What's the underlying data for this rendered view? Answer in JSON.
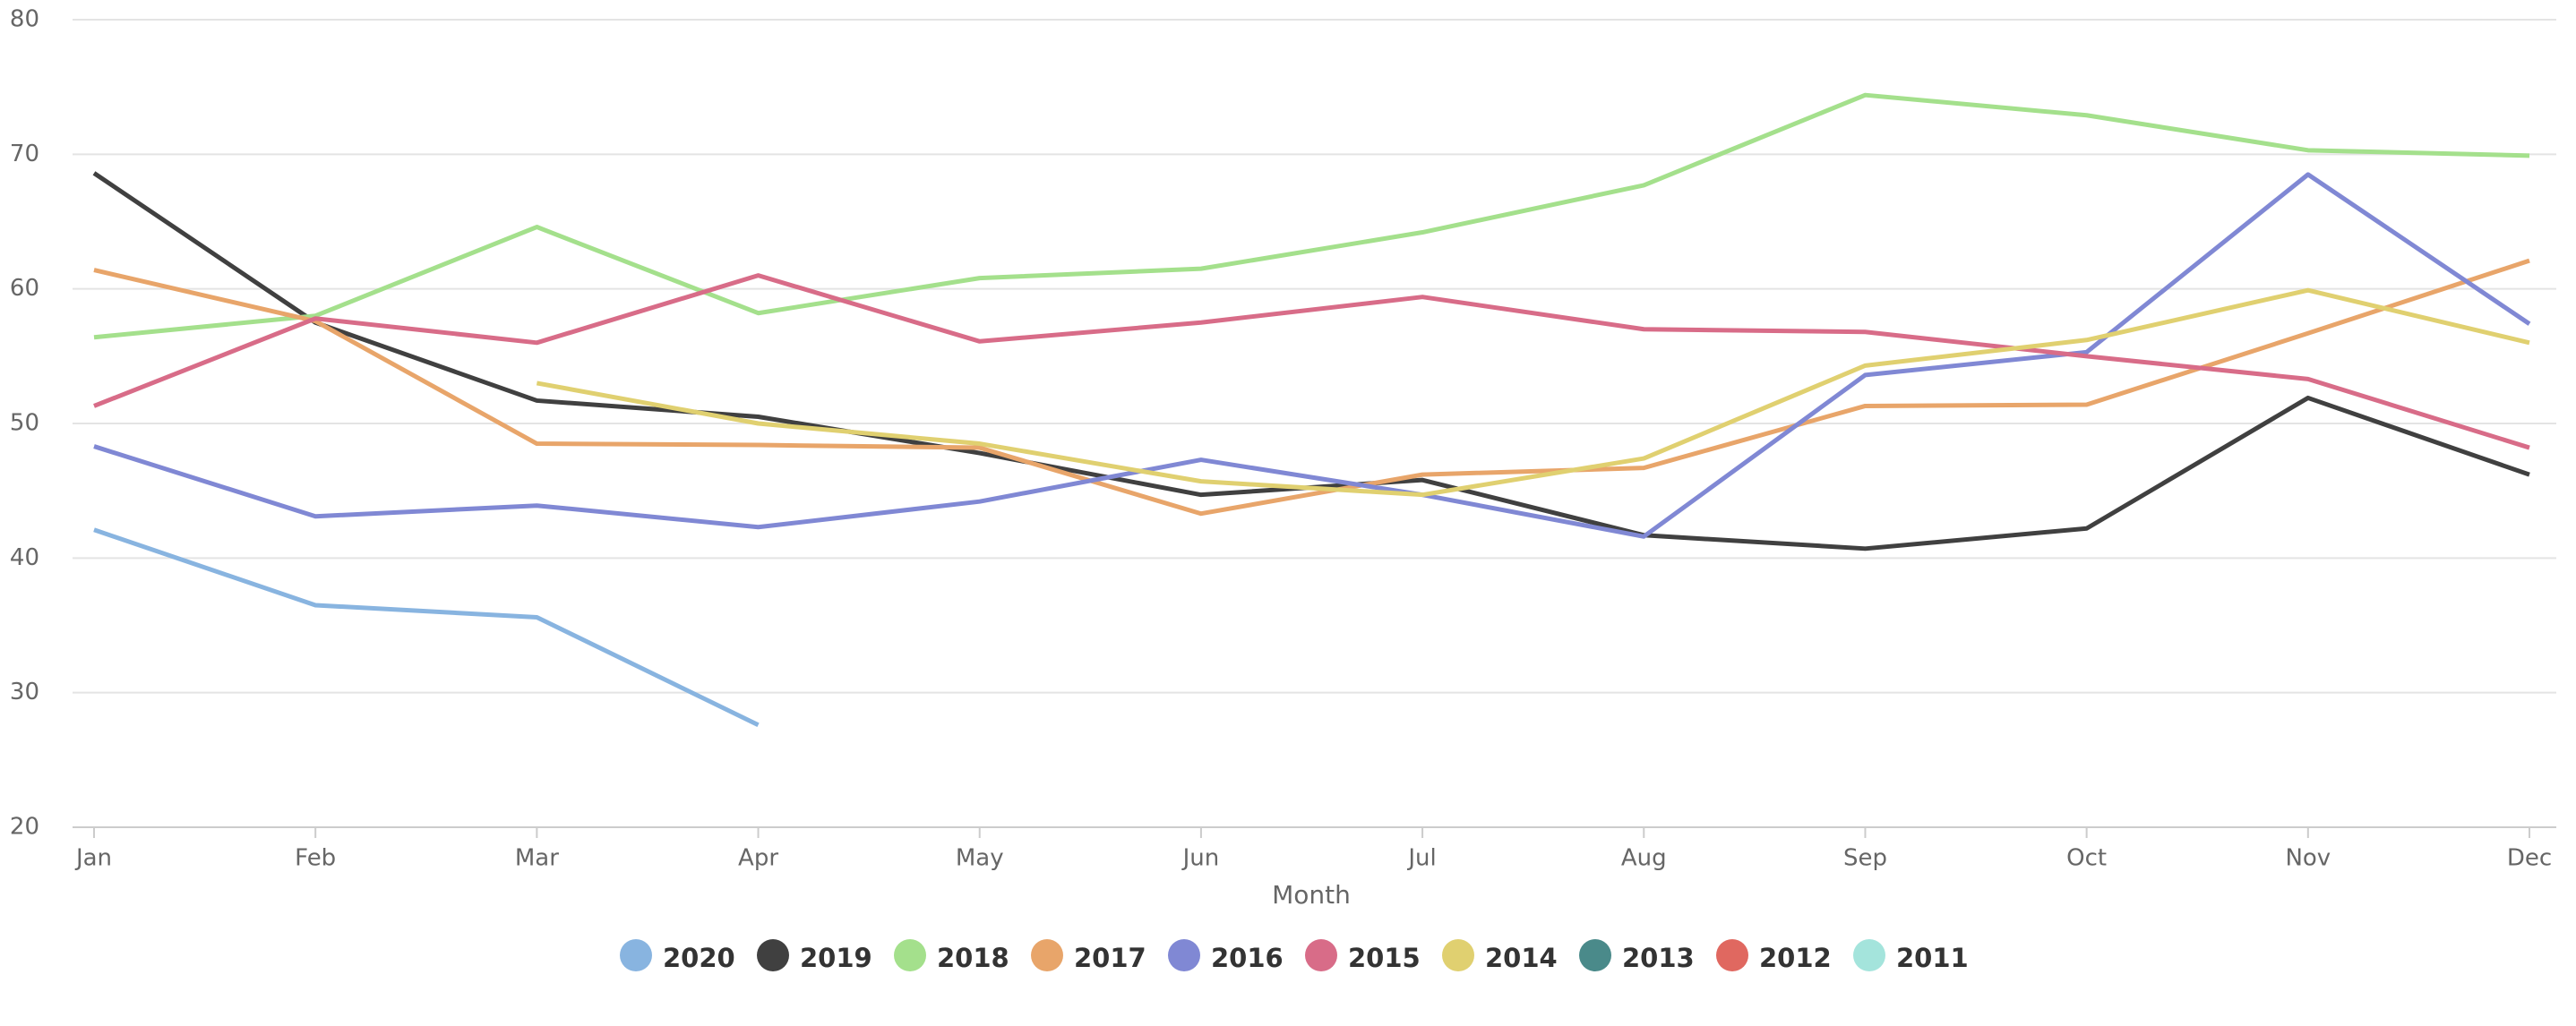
{
  "chart_data": {
    "type": "line",
    "x_label": "Month",
    "categories": [
      "Jan",
      "Feb",
      "Mar",
      "Apr",
      "May",
      "Jun",
      "Jul",
      "Aug",
      "Sep",
      "Oct",
      "Nov",
      "Dec"
    ],
    "ylim": [
      20,
      80
    ],
    "yticks": [
      20,
      30,
      40,
      50,
      60,
      70,
      80
    ],
    "grid": true,
    "legend": "bottom",
    "series": [
      {
        "name": "2020",
        "color": "#88b4e0",
        "values": [
          42.1,
          36.5,
          35.6,
          27.6,
          null,
          null,
          null,
          null,
          null,
          null,
          null,
          null
        ]
      },
      {
        "name": "2019",
        "color": "#404040",
        "values": [
          68.6,
          57.5,
          51.7,
          50.5,
          47.8,
          44.7,
          45.8,
          41.7,
          40.7,
          42.2,
          51.9,
          46.2
        ]
      },
      {
        "name": "2018",
        "color": "#a4e08c",
        "values": [
          56.4,
          58.0,
          64.6,
          58.2,
          60.8,
          61.5,
          64.2,
          67.7,
          74.4,
          72.9,
          70.3,
          69.9
        ]
      },
      {
        "name": "2017",
        "color": "#e8a56a",
        "values": [
          61.4,
          57.6,
          48.5,
          48.4,
          48.2,
          43.3,
          46.2,
          46.7,
          51.3,
          51.4,
          56.7,
          62.1
        ]
      },
      {
        "name": "2016",
        "color": "#8088d4",
        "values": [
          48.3,
          43.1,
          43.9,
          42.3,
          44.2,
          47.3,
          44.7,
          41.6,
          53.6,
          55.3,
          68.5,
          57.4
        ]
      },
      {
        "name": "2015",
        "color": "#d86c88",
        "values": [
          51.3,
          57.8,
          56.0,
          61.0,
          56.1,
          57.5,
          59.4,
          57.0,
          56.8,
          55.0,
          53.3,
          48.2
        ]
      },
      {
        "name": "2014",
        "color": "#e0d070",
        "values": [
          null,
          null,
          53.0,
          50.0,
          48.5,
          45.7,
          44.7,
          47.4,
          54.3,
          56.2,
          59.9,
          56.0
        ]
      },
      {
        "name": "2013",
        "color": "#4a8a8a",
        "values": [
          null,
          null,
          null,
          null,
          null,
          null,
          null,
          null,
          null,
          null,
          null,
          null
        ]
      },
      {
        "name": "2012",
        "color": "#e06860",
        "values": [
          null,
          null,
          null,
          null,
          null,
          null,
          null,
          null,
          null,
          null,
          null,
          null
        ]
      },
      {
        "name": "2011",
        "color": "#a4e4dc",
        "values": [
          null,
          null,
          null,
          null,
          null,
          null,
          null,
          null,
          null,
          null,
          null,
          null
        ]
      }
    ]
  }
}
